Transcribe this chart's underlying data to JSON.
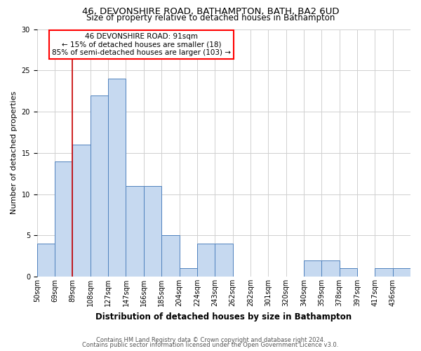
{
  "title1": "46, DEVONSHIRE ROAD, BATHAMPTON, BATH, BA2 6UD",
  "title2": "Size of property relative to detached houses in Bathampton",
  "xlabel": "Distribution of detached houses by size in Bathampton",
  "ylabel": "Number of detached properties",
  "footnote1": "Contains HM Land Registry data © Crown copyright and database right 2024.",
  "footnote2": "Contains public sector information licensed under the Open Government Licence v3.0.",
  "bin_labels": [
    "50sqm",
    "69sqm",
    "89sqm",
    "108sqm",
    "127sqm",
    "147sqm",
    "166sqm",
    "185sqm",
    "204sqm",
    "224sqm",
    "243sqm",
    "262sqm",
    "282sqm",
    "301sqm",
    "320sqm",
    "340sqm",
    "359sqm",
    "378sqm",
    "397sqm",
    "417sqm",
    "436sqm"
  ],
  "bar_heights": [
    4,
    14,
    16,
    22,
    24,
    11,
    11,
    5,
    1,
    4,
    4,
    0,
    0,
    0,
    0,
    2,
    2,
    1,
    0,
    1,
    1
  ],
  "bar_color": "#c6d9f0",
  "bar_edge_color": "#4f81bd",
  "annotation_text1": "46 DEVONSHIRE ROAD: 91sqm",
  "annotation_text2": "← 15% of detached houses are smaller (18)",
  "annotation_text3": "85% of semi-detached houses are larger (103) →",
  "annotation_box_color": "white",
  "annotation_border_color": "red",
  "vline_color": "#cc0000",
  "ylim": [
    0,
    30
  ],
  "yticks": [
    0,
    5,
    10,
    15,
    20,
    25,
    30
  ],
  "background_color": "white",
  "grid_color": "#d0d0d0",
  "title1_fontsize": 9.5,
  "title2_fontsize": 8.5,
  "ylabel_fontsize": 8,
  "xlabel_fontsize": 8.5,
  "tick_fontsize": 7,
  "footnote_fontsize": 6,
  "annot_fontsize": 7.5
}
